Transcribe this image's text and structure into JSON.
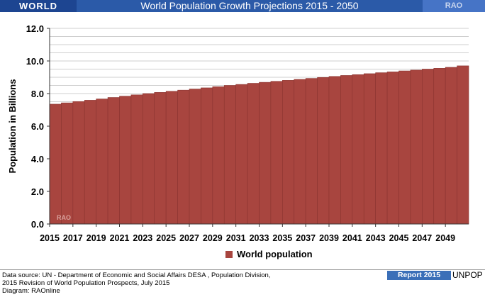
{
  "header": {
    "left_label": "WORLD",
    "title": "World Population Growth Projections 2015 - 2050",
    "right_label": "RAO"
  },
  "colors": {
    "bar": "#a8453f",
    "bar_stroke": "#8a3430",
    "header_bg": "#2b5aa8"
  },
  "watermark": "RAO",
  "chart_data": {
    "type": "bar",
    "title": "",
    "xlabel": "",
    "ylabel": "Population in Billions",
    "ylim": [
      0,
      12
    ],
    "yticks": [
      "0.0",
      "2.0",
      "4.0",
      "6.0",
      "8.0",
      "10.0",
      "12.0"
    ],
    "grid": true,
    "legend_position": "bottom",
    "categories": [
      "2015",
      "2016",
      "2017",
      "2018",
      "2019",
      "2020",
      "2021",
      "2022",
      "2023",
      "2024",
      "2025",
      "2026",
      "2027",
      "2028",
      "2029",
      "2030",
      "2031",
      "2032",
      "2033",
      "2034",
      "2035",
      "2036",
      "2037",
      "2038",
      "2039",
      "2040",
      "2041",
      "2042",
      "2043",
      "2044",
      "2045",
      "2046",
      "2047",
      "2048",
      "2049",
      "2050"
    ],
    "xtick_labels": [
      "2015",
      "2017",
      "2019",
      "2021",
      "2023",
      "2025",
      "2027",
      "2029",
      "2031",
      "2033",
      "2035",
      "2037",
      "2039",
      "2041",
      "2043",
      "2045",
      "2047",
      "2049"
    ],
    "series": [
      {
        "name": "World population",
        "values": [
          7.35,
          7.43,
          7.51,
          7.59,
          7.67,
          7.76,
          7.84,
          7.92,
          8.0,
          8.07,
          8.14,
          8.21,
          8.28,
          8.35,
          8.42,
          8.5,
          8.56,
          8.63,
          8.69,
          8.75,
          8.81,
          8.87,
          8.93,
          8.99,
          9.05,
          9.11,
          9.16,
          9.22,
          9.28,
          9.33,
          9.39,
          9.44,
          9.5,
          9.55,
          9.61,
          9.7
        ]
      }
    ]
  },
  "footer": {
    "source_line1": "Data source: UN -  Department of Economic and Social Affairs DESA , Population Division,",
    "source_line2": "2015 Revision of World Population Prospects, July 2015",
    "source_line3": "Diagram: RAOnline",
    "badge": "Report 2015",
    "org": "UNPOP"
  }
}
